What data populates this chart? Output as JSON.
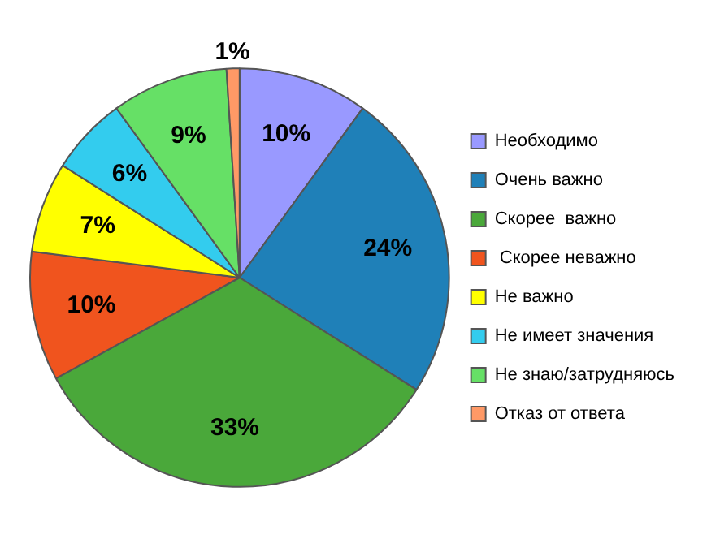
{
  "chart_data": {
    "type": "pie",
    "categories": [
      "Необходимо",
      "Очень важно",
      "Скорее  важно",
      " Скорее неважно",
      "Не важно",
      "Не имеет значения",
      "Не знаю/затрудняюсь",
      "Отказ от ответа"
    ],
    "values": [
      10,
      24,
      33,
      10,
      7,
      6,
      9,
      1
    ],
    "colors": [
      "#9999ff",
      "#1f80b8",
      "#4aa83a",
      "#f0541e",
      "#ffff00",
      "#33ccee",
      "#66e066",
      "#ff9966"
    ],
    "value_labels": [
      "10%",
      "24%",
      "33%",
      "10%",
      "7%",
      "6%",
      "9%",
      "1%"
    ],
    "legend": "right"
  }
}
